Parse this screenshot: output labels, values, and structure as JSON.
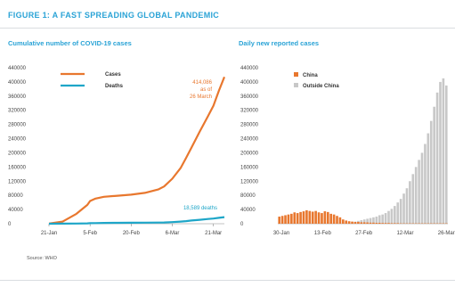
{
  "figure_title": "FIGURE 1: A FAST SPREADING GLOBAL PANDEMIC",
  "source": "Source: WHO",
  "colors": {
    "accent": "#2aa3d6",
    "cases": "#e8772e",
    "deaths": "#1ea6c8",
    "china": "#e8772e",
    "outside_china": "#c8c8c8"
  },
  "chart_data": [
    {
      "type": "line",
      "title": "Cumulative number of COVID-19 cases",
      "ylim": [
        0,
        440000
      ],
      "yticks": [
        "440000",
        "400000",
        "360000",
        "320000",
        "280000",
        "240000",
        "200000",
        "160000",
        "120000",
        "80000",
        "40000",
        "0"
      ],
      "xticks": [
        "21-Jan",
        "5-Feb",
        "20-Feb",
        "6-Mar",
        "21-Mar"
      ],
      "x_days": [
        0,
        5,
        10,
        14,
        15,
        17,
        20,
        25,
        30,
        35,
        40,
        42,
        45,
        48,
        50,
        52,
        55,
        58,
        60,
        62,
        64
      ],
      "legend_position": "top-left",
      "series": [
        {
          "name": "Cases",
          "values": [
            300,
            6000,
            28000,
            53000,
            64000,
            71000,
            76000,
            79000,
            82000,
            87000,
            97000,
            105000,
            127000,
            157000,
            185000,
            215000,
            260000,
            303000,
            333000,
            375000,
            414000
          ]
        },
        {
          "name": "Deaths",
          "values": [
            6,
            130,
            600,
            1100,
            1400,
            1700,
            2200,
            2500,
            2800,
            3000,
            3300,
            3500,
            4600,
            6000,
            7400,
            9000,
            11000,
            13400,
            14600,
            16500,
            18589
          ]
        }
      ],
      "annotations": {
        "cases_line1": "414,086",
        "cases_line2": "as of",
        "cases_line3": "26 March",
        "deaths": "18,589 deaths"
      }
    },
    {
      "type": "bar",
      "title": "Daily new reported cases",
      "ylim": [
        0,
        440000
      ],
      "yticks": [
        "440000",
        "400000",
        "360000",
        "320000",
        "280000",
        "240000",
        "200000",
        "160000",
        "120000",
        "80000",
        "40000",
        "0"
      ],
      "xticks": [
        "30-Jan",
        "13-Feb",
        "27-Feb",
        "12-Mar",
        "26-Mar"
      ],
      "legend_position": "top-left",
      "series": [
        {
          "name": "China",
          "values": [
            20000,
            22000,
            24000,
            26000,
            28000,
            32000,
            30000,
            33000,
            35000,
            38000,
            36000,
            34000,
            36000,
            32000,
            30000,
            35000,
            33000,
            28000,
            26000,
            22000,
            18000,
            12000,
            9000,
            7000,
            6000,
            5000,
            5000,
            4000,
            4000,
            3500,
            3000,
            3000,
            2500,
            2500,
            2000,
            2000,
            2000,
            1500,
            1500,
            1500,
            1000,
            1000,
            1000,
            1000,
            1000,
            1000,
            1000,
            1000,
            1000,
            1000,
            1000,
            1000,
            1000,
            1000,
            1000,
            1000
          ]
        },
        {
          "name": "Outside China",
          "values": [
            0,
            0,
            0,
            0,
            0,
            0,
            0,
            0,
            0,
            0,
            0,
            0,
            0,
            0,
            0,
            0,
            500,
            500,
            800,
            1000,
            1200,
            1500,
            2000,
            3000,
            4000,
            6000,
            8000,
            10000,
            12000,
            14000,
            16000,
            18000,
            20000,
            24000,
            26000,
            30000,
            36000,
            42000,
            50000,
            60000,
            70000,
            85000,
            100000,
            120000,
            140000,
            160000,
            180000,
            200000,
            225000,
            255000,
            290000,
            330000,
            370000,
            400000,
            410000,
            390000
          ]
        }
      ]
    }
  ]
}
